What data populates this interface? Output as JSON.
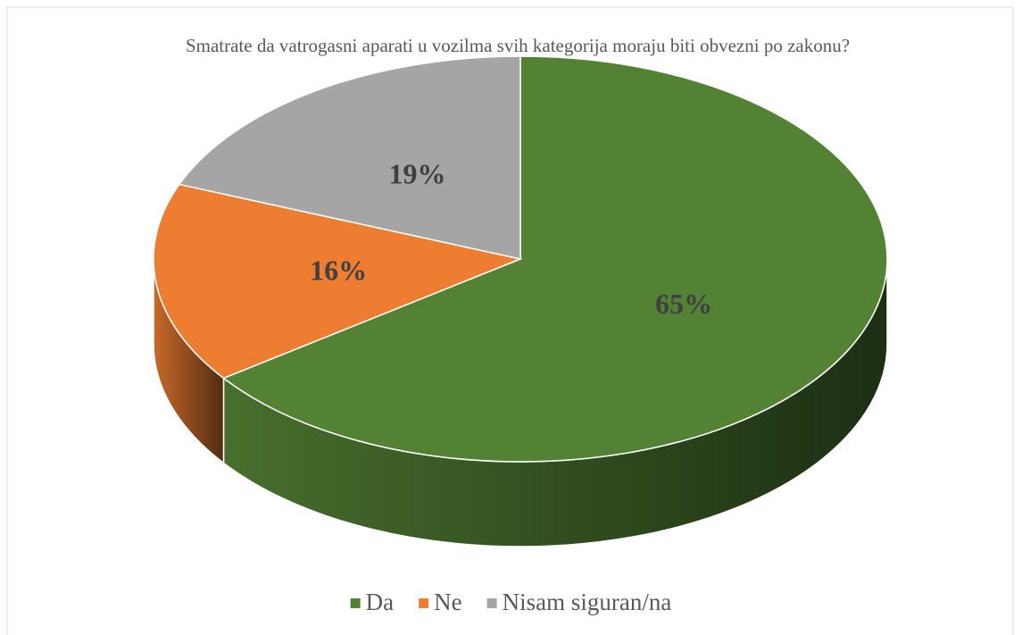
{
  "chart_data": {
    "type": "pie",
    "title": "Smatrate da vatrogasni aparati u vozilma  svih kategorija  moraju biti obvezni po zakonu?",
    "categories": [
      "Da",
      "Ne",
      "Nisam siguran/na"
    ],
    "values": [
      65,
      16,
      19
    ],
    "value_labels": [
      "65%",
      "16%",
      "19%"
    ],
    "colors": [
      "#548235",
      "#ed7d31",
      "#a5a5a5"
    ],
    "legend": "bottom"
  }
}
